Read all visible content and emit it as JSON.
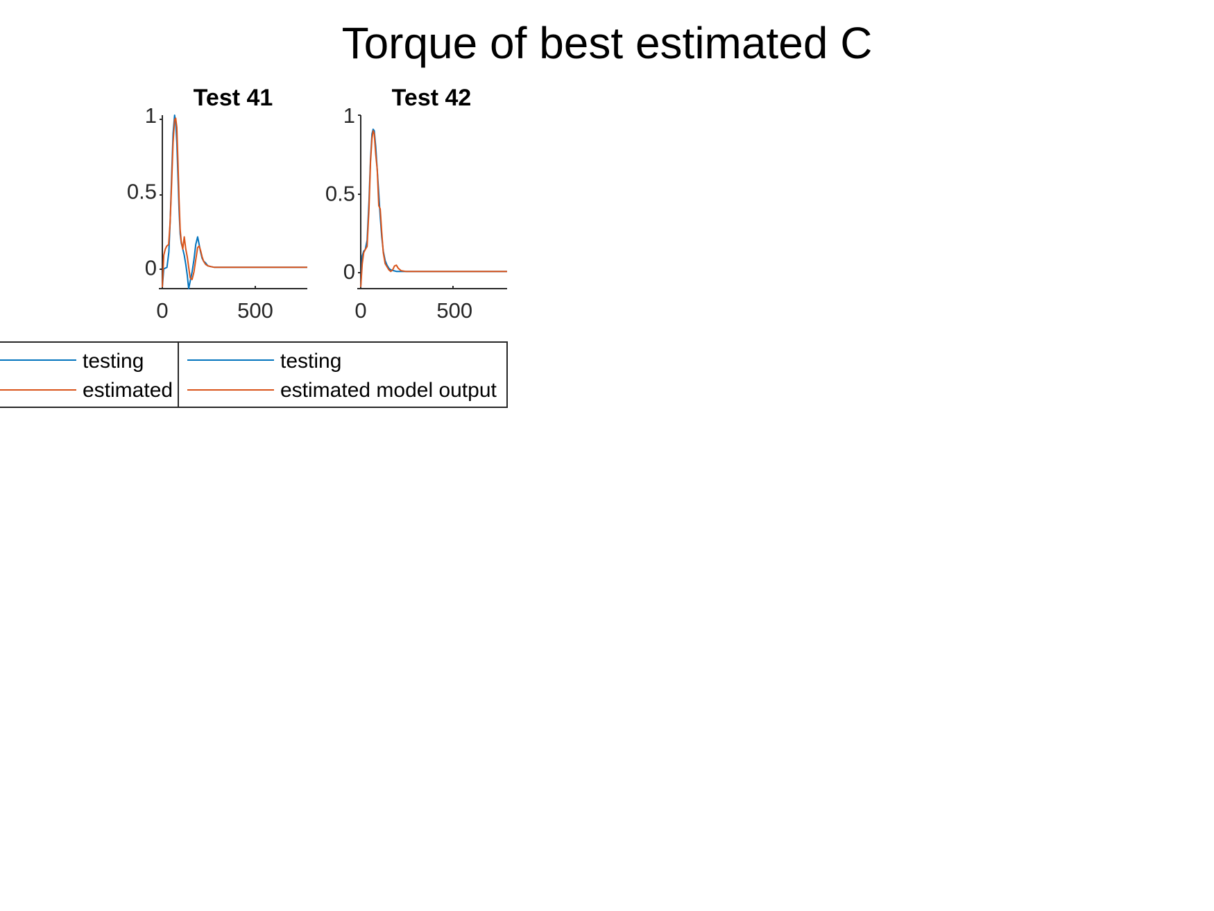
{
  "figure": {
    "title": "Torque of best estimated C"
  },
  "colors": {
    "testing": "#0072BD",
    "estimated": "#D95319"
  },
  "chart_data": [
    {
      "type": "line",
      "title": "Test 41",
      "xlabel": "",
      "ylabel": "",
      "xlim": [
        0,
        780
      ],
      "ylim": [
        -0.14,
        1.0
      ],
      "xticks": [
        0,
        500
      ],
      "yticks": [
        0,
        0.5,
        1
      ],
      "grid": false,
      "series": [
        {
          "name": "testing",
          "x": [
            0,
            8,
            25,
            35,
            42,
            50,
            58,
            66,
            72,
            78,
            84,
            90,
            96,
            102,
            110,
            118,
            126,
            134,
            142,
            150,
            160,
            170,
            180,
            190,
            198,
            206,
            214,
            222,
            232,
            245,
            260,
            280,
            320,
            400,
            500,
            600,
            700,
            780
          ],
          "y": [
            -0.13,
            -0.01,
            0.0,
            0.1,
            0.3,
            0.6,
            0.88,
            1.0,
            0.95,
            0.82,
            0.6,
            0.38,
            0.22,
            0.16,
            0.12,
            0.08,
            0.02,
            -0.05,
            -0.14,
            -0.09,
            -0.03,
            0.05,
            0.15,
            0.2,
            0.15,
            0.1,
            0.06,
            0.04,
            0.03,
            0.01,
            0.005,
            0.0,
            0.0,
            0.0,
            0.0,
            0.0,
            0.0,
            0.0
          ]
        },
        {
          "name": "estimated",
          "x": [
            0,
            8,
            16,
            24,
            34,
            42,
            50,
            58,
            66,
            72,
            78,
            84,
            90,
            96,
            102,
            110,
            118,
            126,
            134,
            142,
            150,
            160,
            170,
            180,
            190,
            198,
            206,
            214,
            222,
            232,
            245,
            260,
            280,
            320,
            400,
            500,
            600,
            700,
            780
          ],
          "y": [
            -0.13,
            0.08,
            0.12,
            0.14,
            0.15,
            0.3,
            0.55,
            0.82,
            0.97,
            0.98,
            0.92,
            0.7,
            0.45,
            0.25,
            0.17,
            0.12,
            0.2,
            0.12,
            0.07,
            0.0,
            -0.07,
            -0.08,
            -0.03,
            0.05,
            0.13,
            0.14,
            0.11,
            0.07,
            0.04,
            0.02,
            0.01,
            0.005,
            0.0,
            0.0,
            0.0,
            0.0,
            0.0,
            0.0,
            0.0
          ]
        }
      ]
    },
    {
      "type": "line",
      "title": "Test 42",
      "xlabel": "",
      "ylabel": "",
      "xlim": [
        0,
        780
      ],
      "ylim": [
        -0.11,
        1.0
      ],
      "xticks": [
        0,
        500
      ],
      "yticks": [
        0,
        0.5,
        1
      ],
      "grid": false,
      "series": [
        {
          "name": "testing",
          "x": [
            0,
            8,
            16,
            24,
            34,
            44,
            52,
            60,
            66,
            72,
            80,
            88,
            96,
            104,
            112,
            120,
            130,
            140,
            150,
            160,
            175,
            190,
            210,
            250,
            300,
            400,
            500,
            600,
            700,
            780
          ],
          "y": [
            -0.1,
            0.1,
            0.13,
            0.14,
            0.2,
            0.45,
            0.72,
            0.88,
            0.91,
            0.9,
            0.8,
            0.65,
            0.5,
            0.35,
            0.22,
            0.13,
            0.07,
            0.04,
            0.02,
            0.01,
            0.005,
            0.0,
            0.0,
            0.0,
            0.0,
            0.0,
            0.0,
            0.0,
            0.0,
            0.0
          ]
        },
        {
          "name": "estimated model output",
          "x": [
            0,
            8,
            16,
            24,
            34,
            44,
            52,
            60,
            66,
            72,
            80,
            88,
            96,
            104,
            112,
            120,
            130,
            140,
            150,
            160,
            170,
            180,
            190,
            200,
            215,
            240,
            280,
            350,
            450,
            550,
            650,
            780
          ],
          "y": [
            -0.1,
            0.05,
            0.12,
            0.14,
            0.16,
            0.4,
            0.7,
            0.85,
            0.9,
            0.88,
            0.75,
            0.65,
            0.42,
            0.4,
            0.25,
            0.12,
            0.05,
            0.03,
            0.01,
            0.0,
            0.01,
            0.035,
            0.04,
            0.02,
            0.005,
            0.0,
            0.0,
            0.0,
            0.0,
            0.0,
            0.0,
            0.0
          ]
        }
      ]
    }
  ],
  "legends": [
    {
      "entries": [
        "testing",
        "estimated"
      ]
    },
    {
      "entries": [
        "testing",
        "estimated model output"
      ]
    }
  ]
}
